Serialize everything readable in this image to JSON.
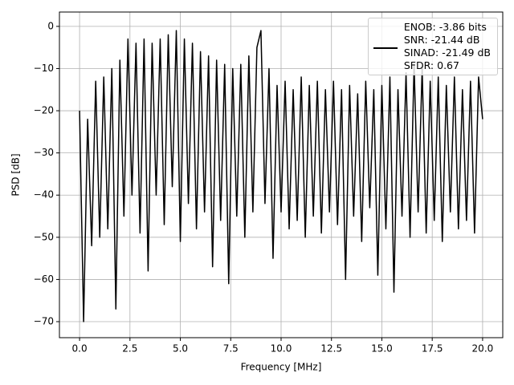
{
  "chart_data": {
    "type": "line",
    "xlabel": "Frequency [MHz]",
    "ylabel": "PSD [dB]",
    "x": [
      0,
      0.2,
      0.4,
      0.6,
      0.8,
      1,
      1.2,
      1.4,
      1.6,
      1.8,
      2,
      2.2,
      2.4,
      2.6,
      2.8,
      3,
      3.2,
      3.4,
      3.6,
      3.8,
      4,
      4.2,
      4.4,
      4.6,
      4.8,
      5,
      5.2,
      5.4,
      5.6,
      5.8,
      6,
      6.2,
      6.4,
      6.6,
      6.8,
      7,
      7.2,
      7.4,
      7.6,
      7.8,
      8,
      8.2,
      8.4,
      8.6,
      8.8,
      9,
      9.2,
      9.4,
      9.6,
      9.8,
      10,
      10.2,
      10.4,
      10.6,
      10.8,
      11,
      11.2,
      11.4,
      11.6,
      11.8,
      12,
      12.2,
      12.4,
      12.6,
      12.8,
      13,
      13.2,
      13.4,
      13.6,
      13.8,
      14,
      14.2,
      14.4,
      14.6,
      14.8,
      15,
      15.2,
      15.4,
      15.6,
      15.8,
      16,
      16.2,
      16.4,
      16.6,
      16.8,
      17,
      17.2,
      17.4,
      17.6,
      17.8,
      18,
      18.2,
      18.4,
      18.6,
      18.8,
      19,
      19.2,
      19.4,
      19.6,
      19.8,
      20
    ],
    "series": [
      {
        "name": "ENOB: -3.86 bits\nSNR: -21.44 dB\nSINAD: -21.49 dB\nSFDR: 0.67",
        "color": "#000000",
        "values": [
          -20,
          -70,
          -22,
          -52,
          -13,
          -50,
          -12,
          -48,
          -10,
          -67,
          -8,
          -45,
          -3,
          -40,
          -4,
          -49,
          -3,
          -58,
          -4,
          -40,
          -3,
          -47,
          -2,
          -38,
          -1,
          -51,
          -3,
          -42,
          -4,
          -48,
          -6,
          -44,
          -7,
          -57,
          -8,
          -46,
          -9,
          -61,
          -10,
          -45,
          -9,
          -50,
          -7,
          -44,
          -5,
          -1,
          -42,
          -10,
          -55,
          -14,
          -44,
          -13,
          -48,
          -15,
          -46,
          -12,
          -50,
          -14,
          -45,
          -13,
          -49,
          -15,
          -44,
          -13,
          -47,
          -15,
          -60,
          -14,
          -45,
          -16,
          -51,
          -13,
          -43,
          -15,
          -59,
          -14,
          -48,
          -12,
          -63,
          -15,
          -45,
          -11,
          -50,
          -9,
          -44,
          -10,
          -49,
          -13,
          -46,
          -12,
          -51,
          -14,
          -44,
          -12,
          -48,
          -15,
          -46,
          -13,
          -49,
          -12,
          -22
        ]
      }
    ],
    "xlim": [
      -1,
      21
    ],
    "ylim": [
      -73.8,
      3.4
    ],
    "xticks": [
      {
        "value": 0,
        "label": "0.0"
      },
      2.5,
      {
        "value": 5,
        "label": "5.0"
      },
      7.5,
      {
        "value": 10,
        "label": "10.0"
      },
      12.5,
      {
        "value": 15,
        "label": "15.0"
      },
      17.5,
      {
        "value": 20,
        "label": "20.0"
      }
    ],
    "yticks": [
      {
        "value": 0,
        "label": "0"
      },
      {
        "value": -10,
        "label": "−10"
      },
      {
        "value": -20,
        "label": "−20"
      },
      {
        "value": -30,
        "label": "−30"
      },
      {
        "value": -40,
        "label": "−40"
      },
      {
        "value": -50,
        "label": "−50"
      },
      {
        "value": -60,
        "label": "−60"
      },
      {
        "value": -70,
        "label": "−70"
      }
    ],
    "grid": true,
    "legend": "upper right"
  }
}
